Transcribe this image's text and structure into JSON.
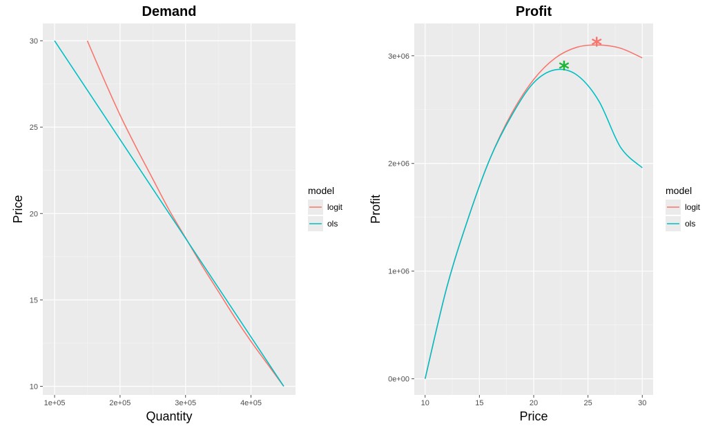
{
  "chart_data": [
    {
      "type": "line",
      "title": "Demand",
      "xlabel": "Quantity",
      "ylabel": "Price",
      "xlim": [
        82000,
        468000
      ],
      "ylim": [
        9.5,
        31
      ],
      "x_ticks": [
        100000,
        200000,
        300000,
        400000
      ],
      "x_tick_labels": [
        "1e+05",
        "2e+05",
        "3e+05",
        "4e+05"
      ],
      "y_ticks": [
        10,
        15,
        20,
        25,
        30
      ],
      "y_tick_labels": [
        "10",
        "15",
        "20",
        "25",
        "30"
      ],
      "grid": true,
      "legend": {
        "title": "model",
        "position": "right"
      },
      "series": [
        {
          "name": "logit",
          "color": "#F8766D",
          "x": [
            150000,
            175000,
            200000,
            225000,
            250000,
            275000,
            300000,
            325000,
            350000,
            375000,
            400000,
            425000,
            450000
          ],
          "y": [
            30,
            27.8,
            25.7,
            23.8,
            22.0,
            20.2,
            18.6,
            17.0,
            15.5,
            14.0,
            12.6,
            11.3,
            10
          ]
        },
        {
          "name": "ols",
          "color": "#00BFC4",
          "x": [
            100000,
            450000
          ],
          "y": [
            30,
            10
          ]
        }
      ]
    },
    {
      "type": "line",
      "title": "Profit",
      "xlabel": "Price",
      "ylabel": "Profit",
      "xlim": [
        9,
        31
      ],
      "ylim": [
        -150000,
        3300000
      ],
      "x_ticks": [
        10,
        15,
        20,
        25,
        30
      ],
      "x_tick_labels": [
        "10",
        "15",
        "20",
        "25",
        "30"
      ],
      "y_ticks": [
        0,
        1000000,
        2000000,
        3000000
      ],
      "y_tick_labels": [
        "0e+00",
        "1e+06",
        "2e+06",
        "3e+06"
      ],
      "grid": true,
      "legend": {
        "title": "model",
        "position": "right"
      },
      "series": [
        {
          "name": "logit",
          "color": "#F8766D",
          "x": [
            10,
            12,
            14,
            16,
            18,
            20,
            22,
            24,
            26,
            28,
            30
          ],
          "y": [
            0,
            850000,
            1500000,
            2050000,
            2470000,
            2780000,
            2980000,
            3080000,
            3100000,
            3070000,
            2980000
          ]
        },
        {
          "name": "ols",
          "color": "#00BFC4",
          "x": [
            10,
            12,
            14,
            16,
            18,
            20,
            22,
            24,
            26,
            28,
            30
          ],
          "y": [
            0,
            850000,
            1500000,
            2050000,
            2450000,
            2750000,
            2870000,
            2820000,
            2580000,
            2150000,
            1960000
          ]
        }
      ],
      "markers": [
        {
          "model": "logit",
          "x": 25.8,
          "y": 3100000,
          "color": "#F8766D",
          "symbol": "*"
        },
        {
          "model": "ols",
          "x": 22.8,
          "y": 2880000,
          "color": "#1DB536",
          "symbol": "*"
        }
      ]
    }
  ]
}
